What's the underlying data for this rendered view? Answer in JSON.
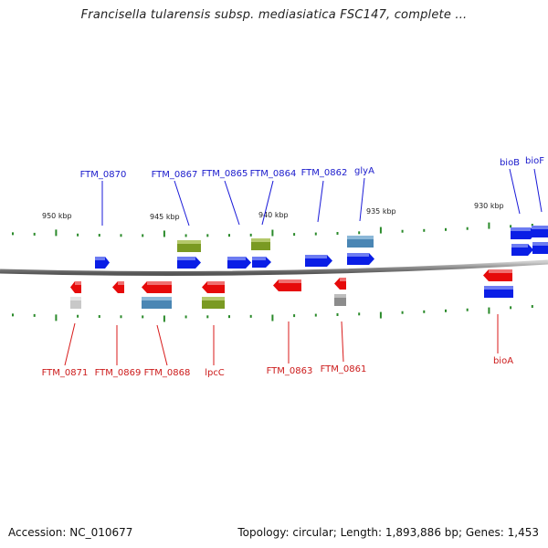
{
  "title": "Francisella tularensis subsp. mediasiatica FSC147, complete ...",
  "footer": {
    "accession": "Accession: NC_010677",
    "topology": "Topology: circular; Length: 1,893,886 bp; Genes: 1,453"
  },
  "colors": {
    "forward_gene": "#0a1ee6",
    "reverse_gene": "#e60a0a",
    "olive_feature": "#7a9a22",
    "steel_feature": "#4a86b4",
    "grey_feature": "#8c8c8c",
    "light_grey_feature": "#c8c8c8",
    "tick": "#2a8a2a",
    "backbone": "#777777"
  },
  "scale_labels": [
    "950 kbp",
    "945 kbp",
    "940 kbp",
    "935 kbp",
    "930 kbp"
  ],
  "top_labels": [
    "FTM_0870",
    "FTM_0867",
    "FTM_0865",
    "FTM_0864",
    "FTM_0862",
    "glyA",
    "bioB",
    "bioF"
  ],
  "bottom_labels": [
    "FTM_0871",
    "FTM_0869",
    "FTM_0868",
    "lpcC",
    "FTM_0863",
    "FTM_0861",
    "bioA"
  ]
}
